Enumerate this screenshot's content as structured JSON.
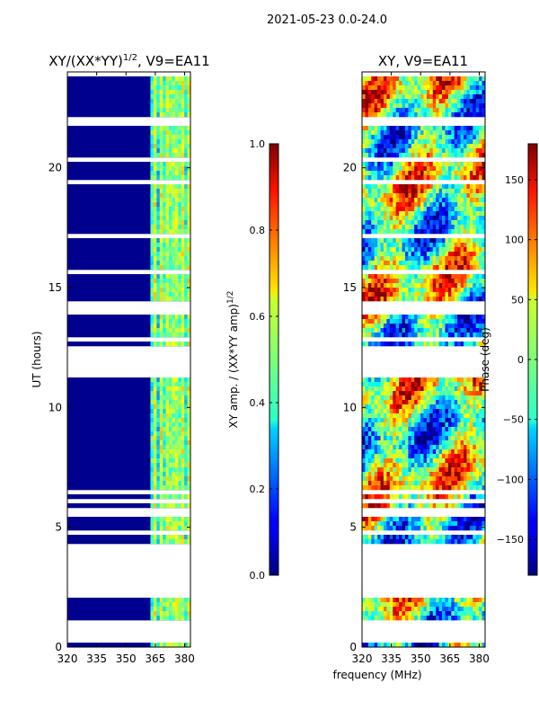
{
  "suptitle": "2021-05-23 0.0-24.0",
  "shared_xlabel": "frequency (MHz)",
  "chart_data": [
    {
      "type": "heatmap",
      "title_main": "XY/(XX*YY)",
      "title_sup": "1/2",
      "title_suffix": ", V9=EA11",
      "ylabel": "UT (hours)",
      "xlim": [
        320,
        383
      ],
      "ylim": [
        0,
        24
      ],
      "xticks": [
        320,
        335,
        350,
        365,
        380
      ],
      "yticks": [
        0,
        5,
        10,
        15,
        20
      ],
      "colorbar": {
        "label_main": "XY amp. / (XX*YY amp)",
        "label_sup": "1/2",
        "range": [
          0.0,
          1.0
        ],
        "ticks": [
          "0.0",
          "0.2",
          "0.4",
          "0.6",
          "0.8",
          "1.0"
        ],
        "tick_values": [
          0.0,
          0.2,
          0.4,
          0.6,
          0.8,
          1.0
        ]
      }
    },
    {
      "type": "heatmap",
      "title_main": "XY, V9=EA11",
      "ylabel": "",
      "xlim": [
        320,
        383
      ],
      "ylim": [
        0,
        24
      ],
      "xticks": [
        320,
        335,
        350,
        365,
        380
      ],
      "yticks": [
        0,
        5,
        10,
        15,
        20
      ],
      "colorbar": {
        "label_main": "Phase (deg)",
        "range": [
          -180,
          180
        ],
        "ticks": [
          "150",
          "100",
          "50",
          "0",
          "−50",
          "−100",
          "−150"
        ],
        "tick_values": [
          150,
          100,
          50,
          0,
          -50,
          -100,
          -150
        ]
      }
    }
  ],
  "data_gaps_hours": [
    [
      0.1,
      1.2
    ],
    [
      2.2,
      4.3
    ],
    [
      11.2,
      12.6
    ],
    [
      13.8,
      14.2
    ],
    [
      21.7,
      22.1
    ]
  ]
}
